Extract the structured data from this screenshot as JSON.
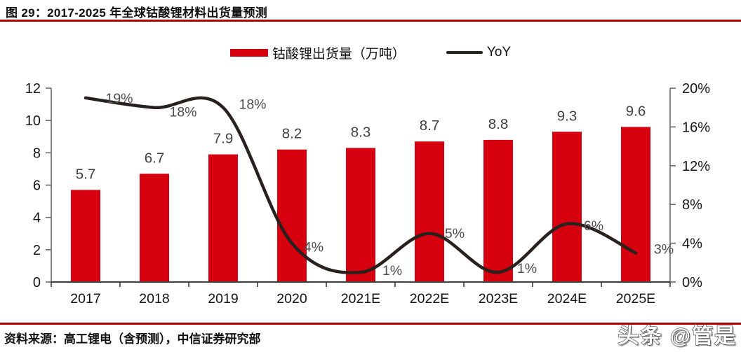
{
  "title": "图 29：2017-2025 年全球钴酸锂材料出货量预测",
  "source": "资料来源：高工锂电（含预测），中信证券研究部",
  "watermark": "头条 @管是",
  "colors": {
    "bar": "#D7000F",
    "line": "#29211E",
    "rule": "#B00000",
    "axis": "#6B6B6B",
    "axis_bottom": "#404040",
    "value_label": "#3F3F3F",
    "pct_label": "#4D4D4D"
  },
  "legend": {
    "bar_label": "钴酸锂出货量（万吨）",
    "line_label": "YoY"
  },
  "chart_data": {
    "type": "bar",
    "subtype": "bar+line combo, dual axis",
    "title": "2017-2025 年全球钴酸锂材料出货量预测",
    "categories": [
      "2017",
      "2018",
      "2019",
      "2020",
      "2021E",
      "2022E",
      "2023E",
      "2024E",
      "2025E"
    ],
    "series": [
      {
        "name": "钴酸锂出货量（万吨）",
        "type": "bar",
        "axis": "left",
        "values": [
          5.7,
          6.7,
          7.9,
          8.2,
          8.3,
          8.7,
          8.8,
          9.3,
          9.6
        ]
      },
      {
        "name": "YoY",
        "type": "line",
        "axis": "right",
        "values_percent": [
          19,
          18,
          18,
          4,
          1,
          5,
          1,
          6,
          3
        ]
      }
    ],
    "left_axis": {
      "min": 0,
      "max": 12,
      "ticks": [
        0,
        2,
        4,
        6,
        8,
        10,
        12
      ]
    },
    "right_axis": {
      "min_pct": 0,
      "max_pct": 20,
      "ticks_pct": [
        0,
        4,
        8,
        12,
        16,
        20
      ],
      "tick_labels": [
        "0%",
        "4%",
        "8%",
        "12%",
        "16%",
        "20%"
      ]
    },
    "grid": false,
    "legend_position": "top-center",
    "data_labels": true
  }
}
